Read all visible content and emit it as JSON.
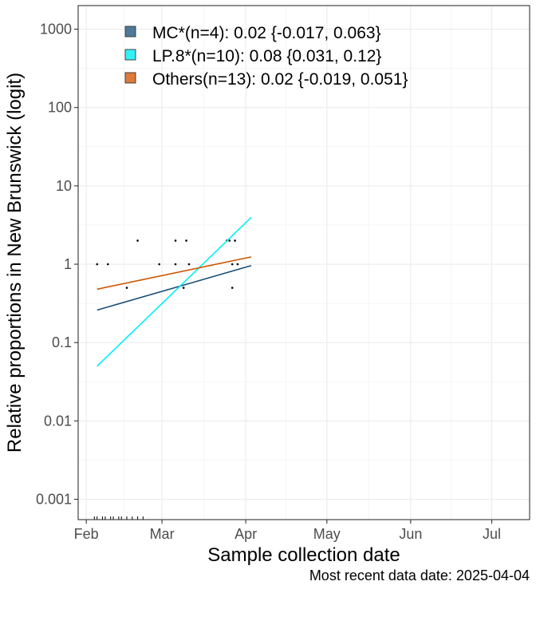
{
  "chart_data": {
    "type": "scatter",
    "xlabel": "Sample collection date",
    "ylabel": "Relative proportions in New Brunswick (logit)",
    "caption": "Most recent data date: 2025-04-04",
    "y_scale": "log10",
    "ylim": [
      0.00055,
      2000
    ],
    "xlim": [
      "2025-01-29",
      "2025-07-15"
    ],
    "x_ticks": [
      {
        "date": "2025-02-01",
        "label": "Feb"
      },
      {
        "date": "2025-03-01",
        "label": "Mar"
      },
      {
        "date": "2025-04-01",
        "label": "Apr"
      },
      {
        "date": "2025-05-01",
        "label": "May"
      },
      {
        "date": "2025-06-01",
        "label": "Jun"
      },
      {
        "date": "2025-07-01",
        "label": "Jul"
      }
    ],
    "y_ticks": [
      {
        "value": 0.001,
        "label": "0.001"
      },
      {
        "value": 0.01,
        "label": "0.01"
      },
      {
        "value": 0.1,
        "label": "0.1"
      },
      {
        "value": 1,
        "label": "1"
      },
      {
        "value": 10,
        "label": "10"
      },
      {
        "value": 100,
        "label": "100"
      },
      {
        "value": 1000,
        "label": "1000"
      }
    ],
    "grid": true,
    "legend_position": "top-left",
    "series": [
      {
        "name": "MC*(n=4): 0.02 {-0.017, 0.063}",
        "color": "#4e7a99",
        "line_color": "#1a4d75",
        "fit_line": [
          {
            "x": "2025-02-05",
            "y": 0.26
          },
          {
            "x": "2025-04-03",
            "y": 0.96
          }
        ]
      },
      {
        "name": "LP.8*(n=10): 0.08 {0.031, 0.12}",
        "color": "#33f0f5",
        "line_color": "#00f0f8",
        "fit_line": [
          {
            "x": "2025-02-05",
            "y": 0.05
          },
          {
            "x": "2025-04-03",
            "y": 3.95
          }
        ]
      },
      {
        "name": "Others(n=13): 0.02 {-0.019, 0.051}",
        "color": "#de7a3a",
        "line_color": "#cc5500",
        "fit_line": [
          {
            "x": "2025-02-05",
            "y": 0.48
          },
          {
            "x": "2025-04-03",
            "y": 1.24
          }
        ]
      }
    ],
    "points": [
      {
        "x": "2025-02-05",
        "y": 1
      },
      {
        "x": "2025-02-09",
        "y": 1
      },
      {
        "x": "2025-02-16",
        "y": 0.5
      },
      {
        "x": "2025-02-20",
        "y": 2
      },
      {
        "x": "2025-02-28",
        "y": 1
      },
      {
        "x": "2025-03-06",
        "y": 2
      },
      {
        "x": "2025-03-06",
        "y": 1
      },
      {
        "x": "2025-03-09",
        "y": 0.5
      },
      {
        "x": "2025-03-10",
        "y": 2
      },
      {
        "x": "2025-03-11",
        "y": 1
      },
      {
        "x": "2025-03-25",
        "y": 2
      },
      {
        "x": "2025-03-26",
        "y": 2
      },
      {
        "x": "2025-03-27",
        "y": 1
      },
      {
        "x": "2025-03-27",
        "y": 0.5
      },
      {
        "x": "2025-03-28",
        "y": 2
      },
      {
        "x": "2025-03-29",
        "y": 1
      }
    ],
    "rug": [
      "2025-02-04",
      "2025-02-05",
      "2025-02-07",
      "2025-02-08",
      "2025-02-10",
      "2025-02-11",
      "2025-02-13",
      "2025-02-14",
      "2025-02-16",
      "2025-02-18",
      "2025-02-20",
      "2025-02-22"
    ]
  }
}
